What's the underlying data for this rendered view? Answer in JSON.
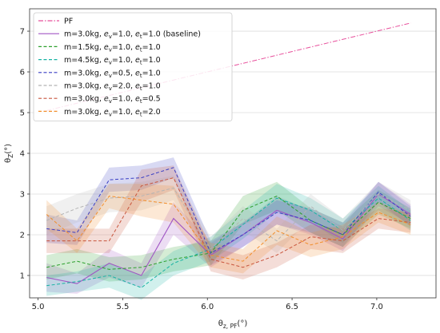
{
  "chart_data": {
    "type": "line",
    "xlabel": "θ_{z, PF}(°)",
    "ylabel": "θ_Z(°)",
    "xlim": [
      4.95,
      7.35
    ],
    "ylim": [
      0.45,
      7.55
    ],
    "xticks": [
      "5.0",
      "5.5",
      "6.0",
      "6.5",
      "7.0"
    ],
    "yticks": [
      "1",
      "2",
      "3",
      "4",
      "5",
      "6",
      "7"
    ],
    "grid": "horizontal",
    "legend_position": "top-left",
    "x": [
      5.05,
      5.23,
      5.42,
      5.61,
      5.8,
      6.02,
      6.21,
      6.41,
      6.61,
      6.8,
      7.01,
      7.2
    ],
    "series": [
      {
        "name": "PF",
        "legend": {
          "base": "PF"
        },
        "color": "#e8509c",
        "style": "dashdot",
        "values": [
          5.05,
          5.23,
          5.42,
          5.61,
          5.8,
          6.02,
          6.21,
          6.41,
          6.61,
          6.8,
          7.01,
          7.2
        ]
      },
      {
        "name": "m=3.0kg, e_v=1.0, e_t=1.0 (baseline)",
        "legend": {
          "base": "m=3.0kg, ",
          "ev": "1.0",
          "et": "1.0",
          "tail": " (baseline)"
        },
        "color": "#a055c4",
        "style": "solid",
        "values": [
          0.95,
          0.8,
          1.3,
          1.0,
          2.4,
          1.5,
          2.0,
          2.6,
          2.3,
          1.9,
          3.0,
          2.5
        ],
        "band": [
          0.35,
          0.25,
          0.35,
          0.3,
          0.4,
          0.3,
          0.3,
          0.35,
          0.3,
          0.3,
          0.3,
          0.25
        ]
      },
      {
        "name": "m=1.5kg, e_v=1.0, e_t=1.0",
        "legend": {
          "base": "m=1.5kg, ",
          "ev": "1.0",
          "et": "1.0",
          "tail": ""
        },
        "color": "#2ca02c",
        "style": "dashed",
        "values": [
          1.2,
          1.35,
          1.15,
          1.2,
          1.4,
          1.55,
          2.6,
          2.95,
          2.35,
          2.0,
          2.8,
          2.4
        ],
        "band": [
          0.3,
          0.3,
          0.3,
          0.3,
          0.3,
          0.3,
          0.35,
          0.35,
          0.3,
          0.3,
          0.3,
          0.25
        ]
      },
      {
        "name": "m=4.5kg, e_v=1.0, e_t=1.0",
        "legend": {
          "base": "m=4.5kg, ",
          "ev": "1.0",
          "et": "1.0",
          "tail": ""
        },
        "color": "#17b3a3",
        "style": "dashed",
        "values": [
          0.75,
          0.85,
          1.0,
          0.7,
          1.3,
          1.65,
          2.25,
          2.9,
          2.6,
          2.1,
          2.9,
          2.35
        ],
        "band": [
          0.25,
          0.25,
          0.3,
          0.3,
          0.3,
          0.3,
          0.35,
          0.35,
          0.3,
          0.3,
          0.3,
          0.25
        ]
      },
      {
        "name": "m=3.0kg, e_v=0.5, e_t=1.0",
        "legend": {
          "base": "m=3.0kg, ",
          "ev": "0.5",
          "et": "1.0",
          "tail": ""
        },
        "color": "#3a3fc4",
        "style": "dashed",
        "values": [
          2.15,
          2.05,
          3.35,
          3.4,
          3.65,
          1.55,
          2.0,
          2.55,
          2.35,
          2.0,
          3.05,
          2.45
        ],
        "band": [
          0.35,
          0.3,
          0.3,
          0.3,
          0.25,
          0.3,
          0.3,
          0.3,
          0.3,
          0.3,
          0.25,
          0.25
        ]
      },
      {
        "name": "m=3.0kg, e_v=2.0, e_t=1.0",
        "legend": {
          "base": "m=3.0kg, ",
          "ev": "2.0",
          "et": "1.0",
          "tail": ""
        },
        "color": "#b5b5b5",
        "style": "dashed",
        "values": [
          2.35,
          2.65,
          2.9,
          2.95,
          3.15,
          1.65,
          2.4,
          1.85,
          2.7,
          2.1,
          3.0,
          2.6
        ],
        "band": [
          0.35,
          0.35,
          0.35,
          0.35,
          0.3,
          0.3,
          0.3,
          0.3,
          0.3,
          0.3,
          0.3,
          0.25
        ]
      },
      {
        "name": "m=3.0kg, e_v=1.0, e_t=0.5",
        "legend": {
          "base": "m=3.0kg, ",
          "ev": "1.0",
          "et": "0.5",
          "tail": ""
        },
        "color": "#c8553d",
        "style": "dashed",
        "values": [
          1.85,
          1.85,
          1.85,
          3.2,
          3.4,
          1.4,
          1.2,
          1.5,
          1.95,
          1.85,
          2.4,
          2.3
        ],
        "band": [
          0.3,
          0.3,
          0.3,
          0.4,
          0.3,
          0.3,
          0.3,
          0.3,
          0.3,
          0.3,
          0.25,
          0.25
        ]
      },
      {
        "name": "m=3.0kg, e_v=1.0, e_t=2.0",
        "legend": {
          "base": "m=3.0kg, ",
          "ev": "1.0",
          "et": "2.0",
          "tail": ""
        },
        "color": "#f28e2b",
        "style": "dashed",
        "values": [
          2.5,
          1.85,
          2.95,
          2.85,
          2.75,
          1.5,
          1.35,
          2.1,
          1.75,
          1.95,
          2.55,
          2.25
        ],
        "band": [
          0.35,
          0.3,
          0.3,
          0.4,
          0.45,
          0.3,
          0.3,
          0.35,
          0.3,
          0.3,
          0.25,
          0.25
        ]
      }
    ]
  }
}
